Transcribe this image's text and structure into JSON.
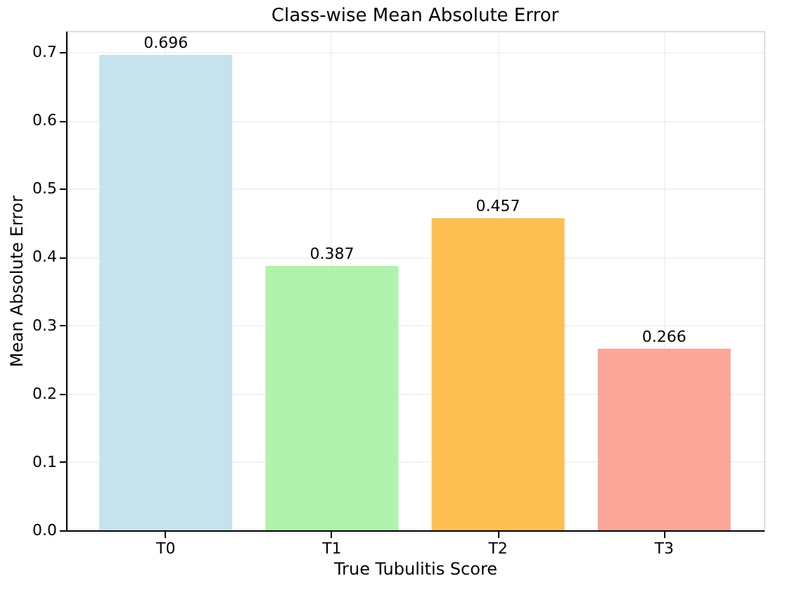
{
  "chart_data": {
    "type": "bar",
    "title": "Class-wise Mean Absolute Error",
    "xlabel": "True Tubulitis Score",
    "ylabel": "Mean Absolute Error",
    "categories": [
      "T0",
      "T1",
      "T2",
      "T3"
    ],
    "values": [
      0.696,
      0.387,
      0.457,
      0.266
    ],
    "colors": [
      "#c5e3ec",
      "#b1f3ad",
      "#fdbf4f",
      "#fba698"
    ],
    "ylim": [
      0,
      0.731
    ],
    "yticks": [
      {
        "value": 0,
        "label": "0.0"
      },
      0.1,
      0.2,
      0.3,
      0.4,
      0.5,
      0.6,
      0.7
    ],
    "data_labels": true,
    "grid": true,
    "legend": false
  }
}
